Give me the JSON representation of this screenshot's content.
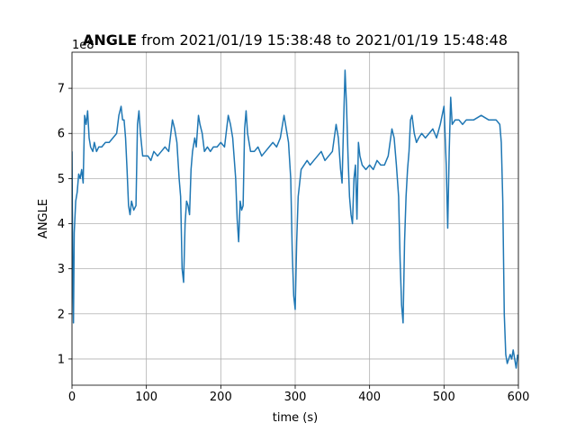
{
  "chart_data": {
    "type": "line",
    "title_bold": "ANGLE",
    "title_rest": " from 2021/01/19 15:38:48 to 2021/01/19 15:48:48",
    "xlabel": "time (s)",
    "ylabel": "ANGLE",
    "offset_label": "1e8",
    "xlim": [
      0,
      600
    ],
    "ylim": [
      0.42,
      7.8
    ],
    "xticks": [
      0,
      100,
      200,
      300,
      400,
      500,
      600
    ],
    "yticks": [
      1,
      2,
      3,
      4,
      5,
      6,
      7
    ],
    "grid": true,
    "color": "#1f77b4",
    "series": [
      {
        "points": [
          [
            0,
            5.6
          ],
          [
            1,
            3.0
          ],
          [
            2,
            1.8
          ],
          [
            3,
            3.8
          ],
          [
            5,
            4.5
          ],
          [
            7,
            4.7
          ],
          [
            9,
            5.1
          ],
          [
            11,
            5.0
          ],
          [
            13,
            5.2
          ],
          [
            15,
            4.9
          ],
          [
            17,
            6.4
          ],
          [
            19,
            6.2
          ],
          [
            21,
            6.5
          ],
          [
            23,
            5.9
          ],
          [
            25,
            5.7
          ],
          [
            28,
            5.6
          ],
          [
            30,
            5.8
          ],
          [
            33,
            5.6
          ],
          [
            36,
            5.7
          ],
          [
            40,
            5.7
          ],
          [
            45,
            5.8
          ],
          [
            50,
            5.8
          ],
          [
            55,
            5.9
          ],
          [
            60,
            6.0
          ],
          [
            63,
            6.4
          ],
          [
            66,
            6.6
          ],
          [
            68,
            6.3
          ],
          [
            70,
            6.3
          ],
          [
            72,
            5.9
          ],
          [
            74,
            5.2
          ],
          [
            76,
            4.4
          ],
          [
            78,
            4.2
          ],
          [
            80,
            4.5
          ],
          [
            83,
            4.3
          ],
          [
            86,
            4.4
          ],
          [
            88,
            6.2
          ],
          [
            90,
            6.5
          ],
          [
            92,
            6.0
          ],
          [
            95,
            5.5
          ],
          [
            98,
            5.5
          ],
          [
            102,
            5.5
          ],
          [
            106,
            5.4
          ],
          [
            110,
            5.6
          ],
          [
            115,
            5.5
          ],
          [
            120,
            5.6
          ],
          [
            125,
            5.7
          ],
          [
            130,
            5.6
          ],
          [
            135,
            6.3
          ],
          [
            138,
            6.1
          ],
          [
            141,
            5.8
          ],
          [
            144,
            5.0
          ],
          [
            146,
            4.6
          ],
          [
            148,
            3.0
          ],
          [
            150,
            2.7
          ],
          [
            152,
            4.0
          ],
          [
            154,
            4.5
          ],
          [
            156,
            4.4
          ],
          [
            158,
            4.2
          ],
          [
            160,
            5.2
          ],
          [
            162,
            5.6
          ],
          [
            165,
            5.9
          ],
          [
            167,
            5.7
          ],
          [
            170,
            6.4
          ],
          [
            172,
            6.2
          ],
          [
            175,
            6.0
          ],
          [
            178,
            5.6
          ],
          [
            182,
            5.7
          ],
          [
            186,
            5.6
          ],
          [
            190,
            5.7
          ],
          [
            195,
            5.7
          ],
          [
            200,
            5.8
          ],
          [
            205,
            5.7
          ],
          [
            210,
            6.4
          ],
          [
            213,
            6.2
          ],
          [
            216,
            5.9
          ],
          [
            220,
            5.0
          ],
          [
            222,
            4.1
          ],
          [
            224,
            3.6
          ],
          [
            226,
            4.5
          ],
          [
            228,
            4.3
          ],
          [
            230,
            4.4
          ],
          [
            232,
            6.1
          ],
          [
            234,
            6.5
          ],
          [
            236,
            6.0
          ],
          [
            240,
            5.6
          ],
          [
            245,
            5.6
          ],
          [
            250,
            5.7
          ],
          [
            255,
            5.5
          ],
          [
            260,
            5.6
          ],
          [
            265,
            5.7
          ],
          [
            270,
            5.8
          ],
          [
            275,
            5.7
          ],
          [
            280,
            5.9
          ],
          [
            285,
            6.4
          ],
          [
            288,
            6.1
          ],
          [
            291,
            5.8
          ],
          [
            294,
            5.0
          ],
          [
            296,
            3.4
          ],
          [
            298,
            2.4
          ],
          [
            300,
            2.1
          ],
          [
            302,
            3.6
          ],
          [
            304,
            4.6
          ],
          [
            306,
            4.9
          ],
          [
            308,
            5.2
          ],
          [
            312,
            5.3
          ],
          [
            316,
            5.4
          ],
          [
            320,
            5.3
          ],
          [
            325,
            5.4
          ],
          [
            330,
            5.5
          ],
          [
            335,
            5.6
          ],
          [
            340,
            5.4
          ],
          [
            345,
            5.5
          ],
          [
            350,
            5.6
          ],
          [
            355,
            6.2
          ],
          [
            358,
            5.9
          ],
          [
            361,
            5.2
          ],
          [
            363,
            4.9
          ],
          [
            365,
            6.2
          ],
          [
            367,
            7.4
          ],
          [
            369,
            6.6
          ],
          [
            371,
            5.5
          ],
          [
            373,
            4.6
          ],
          [
            375,
            4.2
          ],
          [
            377,
            4.0
          ],
          [
            379,
            5.0
          ],
          [
            381,
            5.3
          ],
          [
            383,
            4.1
          ],
          [
            385,
            5.8
          ],
          [
            387,
            5.5
          ],
          [
            390,
            5.3
          ],
          [
            395,
            5.2
          ],
          [
            400,
            5.3
          ],
          [
            405,
            5.2
          ],
          [
            410,
            5.4
          ],
          [
            415,
            5.3
          ],
          [
            420,
            5.3
          ],
          [
            425,
            5.5
          ],
          [
            430,
            6.1
          ],
          [
            433,
            5.9
          ],
          [
            436,
            5.3
          ],
          [
            439,
            4.6
          ],
          [
            441,
            3.2
          ],
          [
            443,
            2.2
          ],
          [
            445,
            1.8
          ],
          [
            447,
            3.6
          ],
          [
            449,
            4.6
          ],
          [
            451,
            5.2
          ],
          [
            453,
            5.6
          ],
          [
            455,
            6.3
          ],
          [
            457,
            6.4
          ],
          [
            460,
            6.0
          ],
          [
            463,
            5.8
          ],
          [
            466,
            5.9
          ],
          [
            470,
            6.0
          ],
          [
            475,
            5.9
          ],
          [
            480,
            6.0
          ],
          [
            485,
            6.1
          ],
          [
            490,
            5.9
          ],
          [
            495,
            6.2
          ],
          [
            500,
            6.6
          ],
          [
            503,
            5.3
          ],
          [
            505,
            3.9
          ],
          [
            507,
            5.6
          ],
          [
            509,
            6.8
          ],
          [
            511,
            6.2
          ],
          [
            515,
            6.3
          ],
          [
            520,
            6.3
          ],
          [
            525,
            6.2
          ],
          [
            530,
            6.3
          ],
          [
            540,
            6.3
          ],
          [
            550,
            6.4
          ],
          [
            560,
            6.3
          ],
          [
            570,
            6.3
          ],
          [
            575,
            6.2
          ],
          [
            577,
            5.8
          ],
          [
            579,
            4.5
          ],
          [
            581,
            2.0
          ],
          [
            583,
            1.1
          ],
          [
            585,
            0.9
          ],
          [
            587,
            1.0
          ],
          [
            589,
            1.1
          ],
          [
            591,
            1.0
          ],
          [
            593,
            1.2
          ],
          [
            595,
            1.0
          ],
          [
            597,
            0.8
          ],
          [
            599,
            1.1
          ]
        ]
      }
    ]
  }
}
